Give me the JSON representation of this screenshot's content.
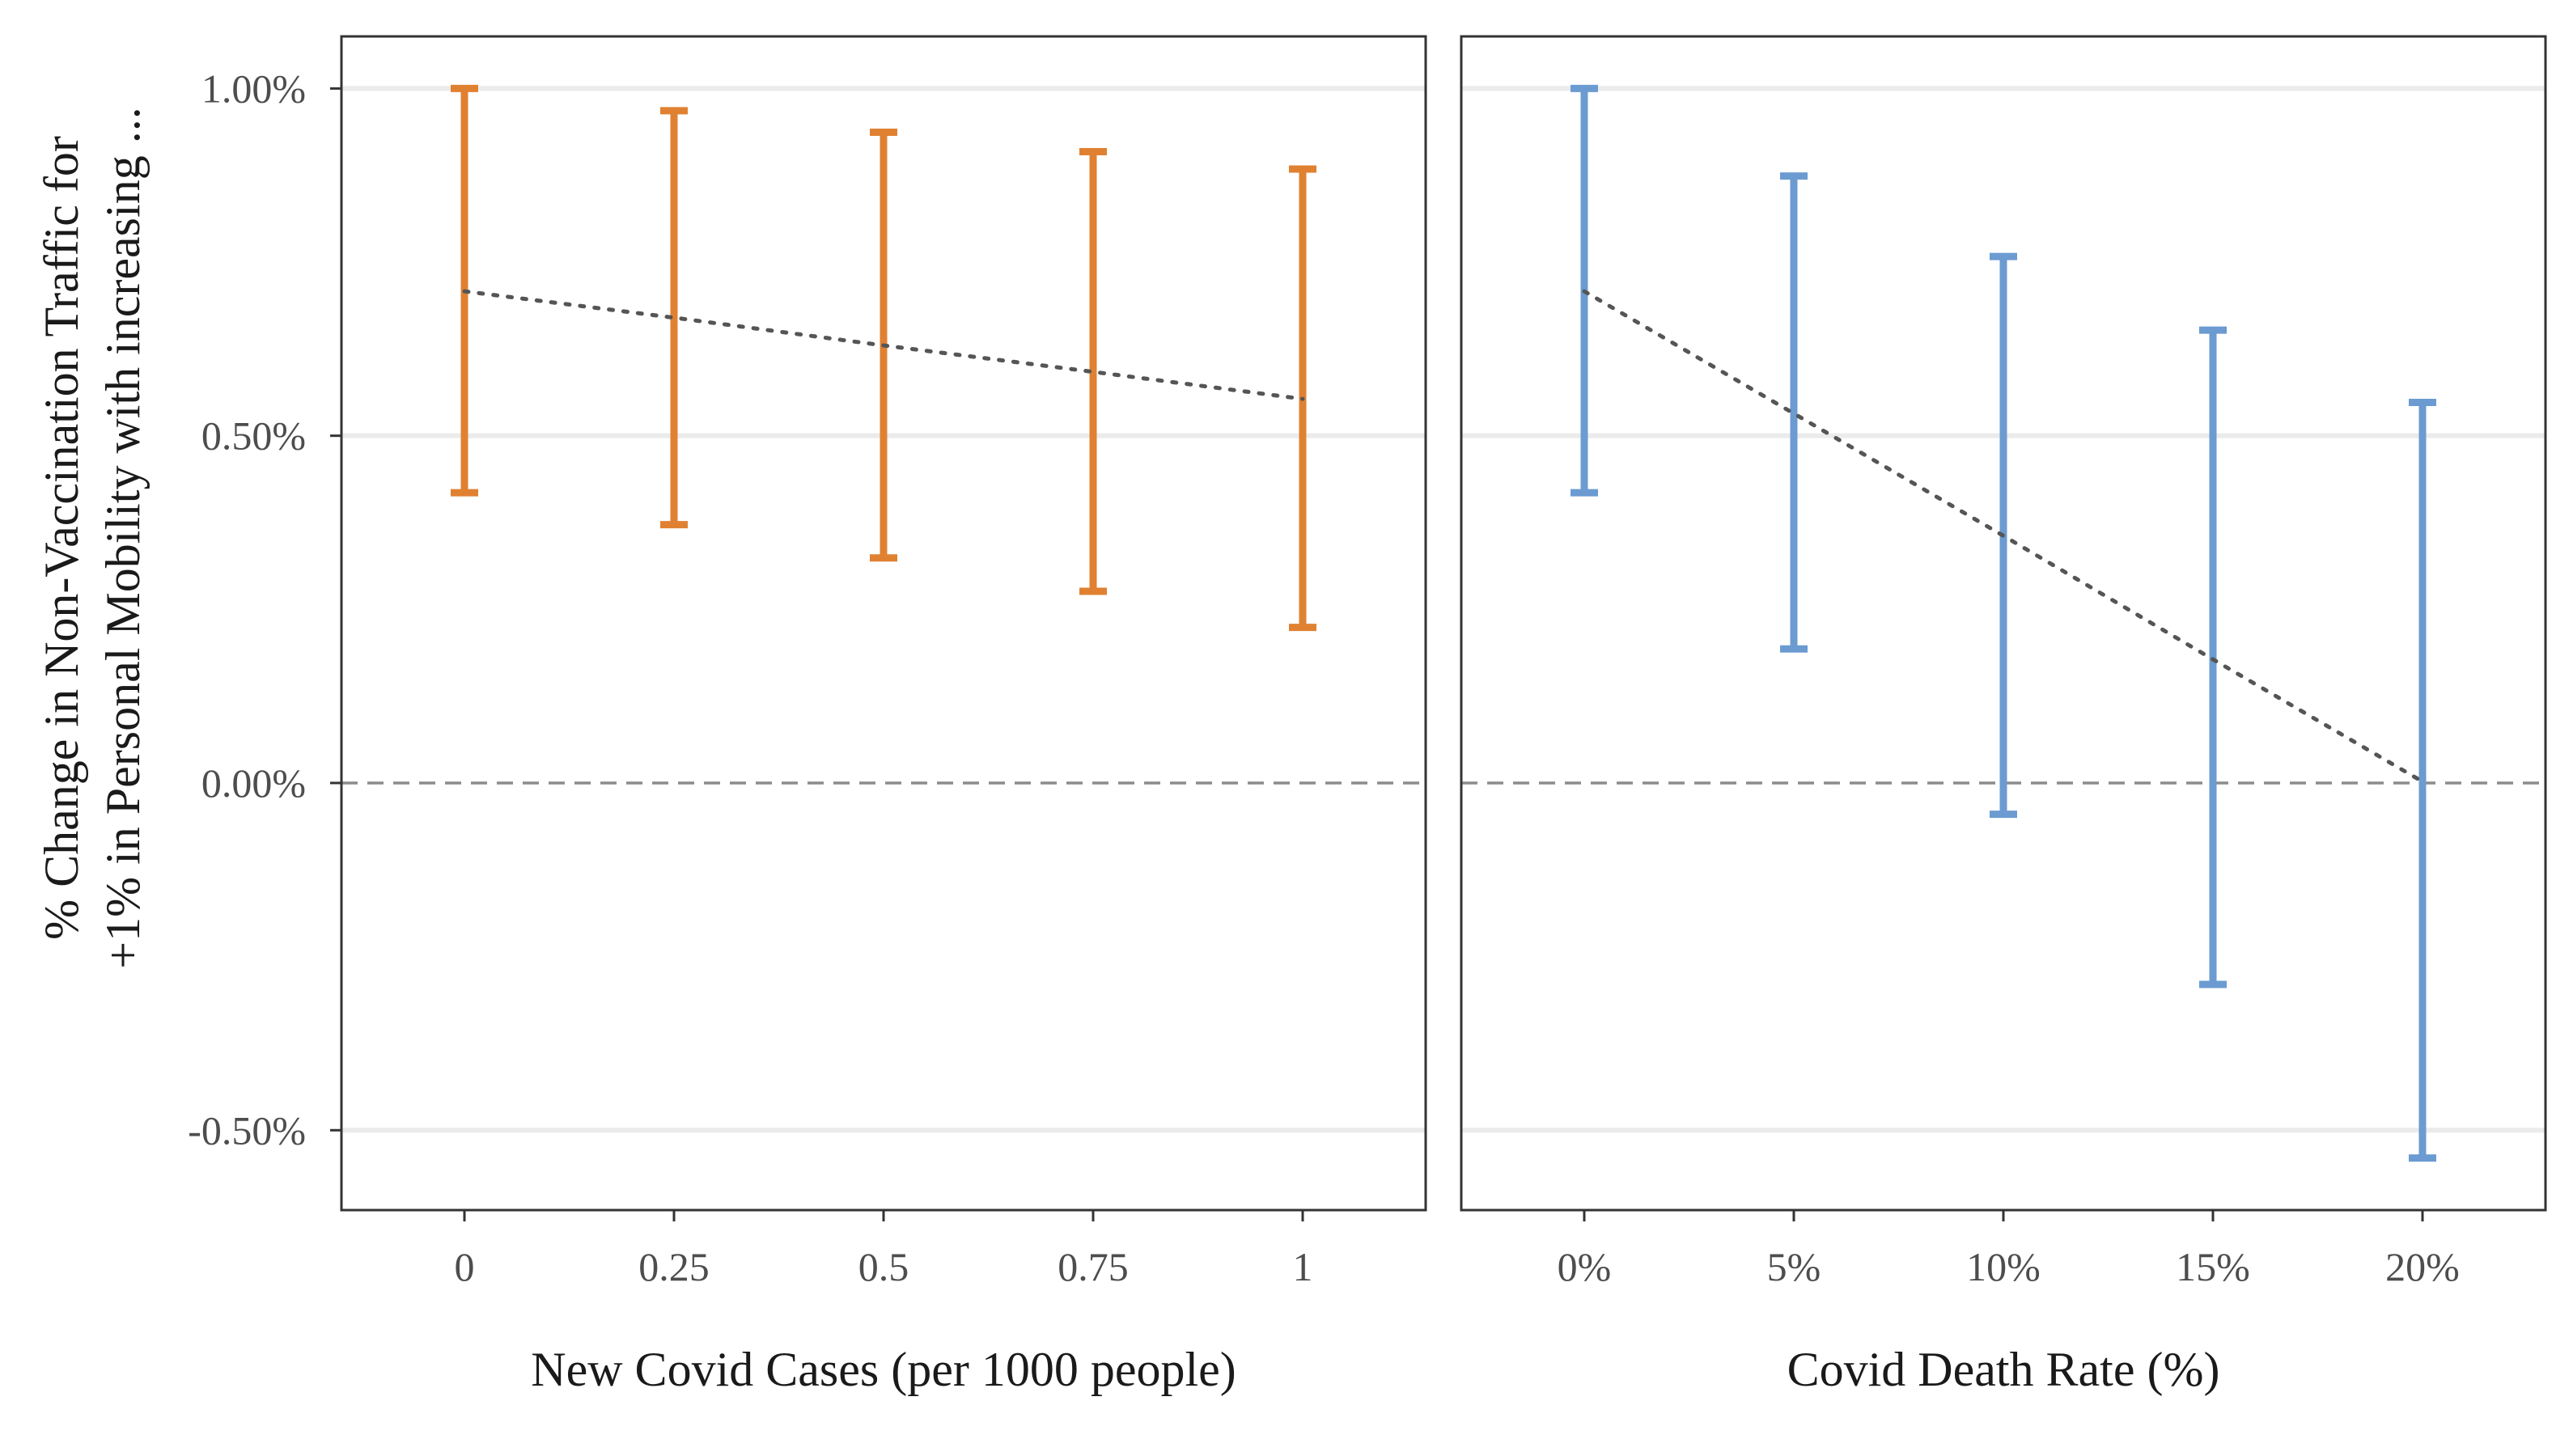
{
  "chart_data": {
    "type": "errorbar",
    "ylabel_line1": "% Change in Non-Vaccination Traffic for",
    "ylabel_line2": "+1% in Personal Mobility with increasing ...",
    "y_tick_values": [
      1.0,
      0.5,
      0.0,
      -0.5
    ],
    "y_tick_labels": [
      "1.00%",
      "0.50%",
      "0.00%",
      "-0.50%"
    ],
    "ylim": [
      -0.615,
      1.075
    ],
    "reference_line_y": 0.0,
    "grid": true,
    "panels": [
      {
        "xlabel": "New Covid Cases (per 1000 people)",
        "color": "#e08132",
        "categories": [
          "0",
          "0.25",
          "0.5",
          "0.75",
          "1"
        ],
        "estimates": [
          0.708,
          0.67,
          0.63,
          0.592,
          0.553
        ],
        "lower": [
          0.418,
          0.372,
          0.324,
          0.276,
          0.224
        ],
        "upper": [
          1.0,
          0.968,
          0.937,
          0.909,
          0.884
        ]
      },
      {
        "xlabel": "Covid Death Rate (%)",
        "color": "#6b9bd1",
        "categories": [
          "0%",
          "5%",
          "10%",
          "15%",
          "20%"
        ],
        "estimates": [
          0.708,
          0.532,
          0.356,
          0.178,
          0.002
        ],
        "lower": [
          0.418,
          0.193,
          -0.045,
          -0.29,
          -0.54
        ],
        "upper": [
          1.0,
          0.874,
          0.758,
          0.652,
          0.548
        ]
      }
    ]
  }
}
